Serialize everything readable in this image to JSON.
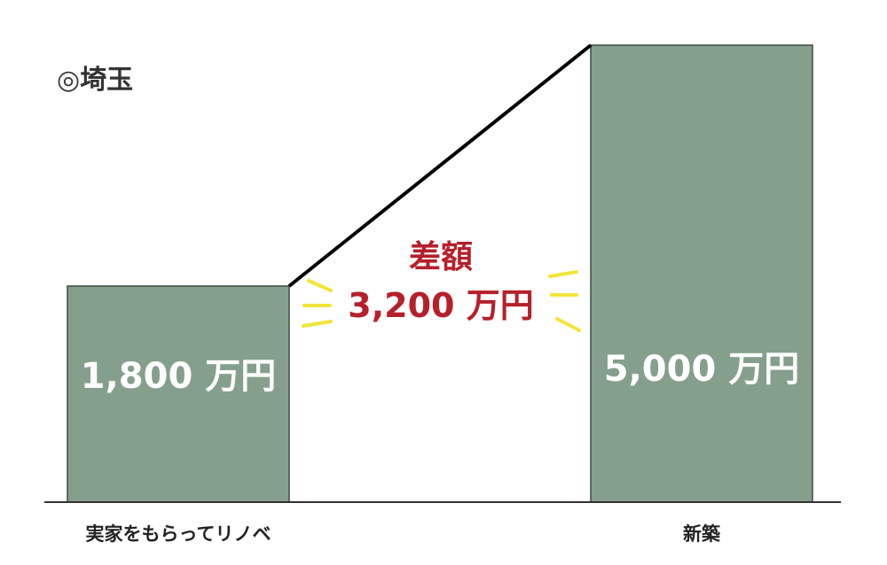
{
  "chart_data": {
    "type": "bar",
    "title": "◎埼玉",
    "categories": [
      "実家をもらってリノベ",
      "新築"
    ],
    "values": [
      1800,
      5000
    ],
    "value_labels": [
      "1,800 万円",
      "5,000 万円"
    ],
    "unit": "万円",
    "annotation": {
      "title": "差額",
      "value": 3200,
      "text": "3,200 万円"
    },
    "colors": {
      "bar": "#84a08c",
      "bar_border": "#3d4a40",
      "annotation": "#b5202a",
      "accent_marks": "#f2e53a",
      "line": "#000000"
    },
    "grid": false,
    "legend": "none"
  }
}
